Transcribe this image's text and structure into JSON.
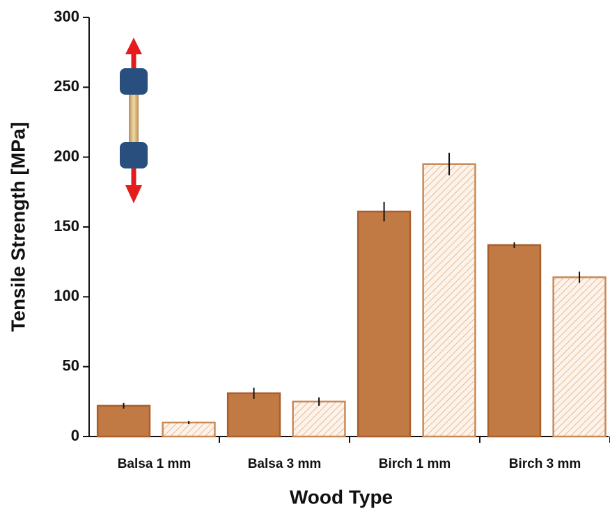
{
  "chart_data": {
    "type": "bar",
    "x_label": "Wood Type",
    "y_label": "Tensile Strength [MPa]",
    "categories": [
      "Balsa 1 mm",
      "Balsa 3 mm",
      "Birch 1 mm",
      "Birch 3 mm"
    ],
    "series": [
      {
        "color": "#c27a44",
        "hatch": false,
        "values": [
          22,
          31,
          161,
          137
        ],
        "errors": [
          2,
          4,
          7,
          2
        ]
      },
      {
        "color": "#c98a55",
        "hatch": true,
        "values": [
          10,
          25,
          195,
          114
        ],
        "errors": [
          1,
          3,
          8,
          4
        ]
      }
    ],
    "ylim": [
      0,
      300
    ],
    "yticks": [
      0,
      50,
      100,
      150,
      200,
      250,
      300
    ]
  }
}
